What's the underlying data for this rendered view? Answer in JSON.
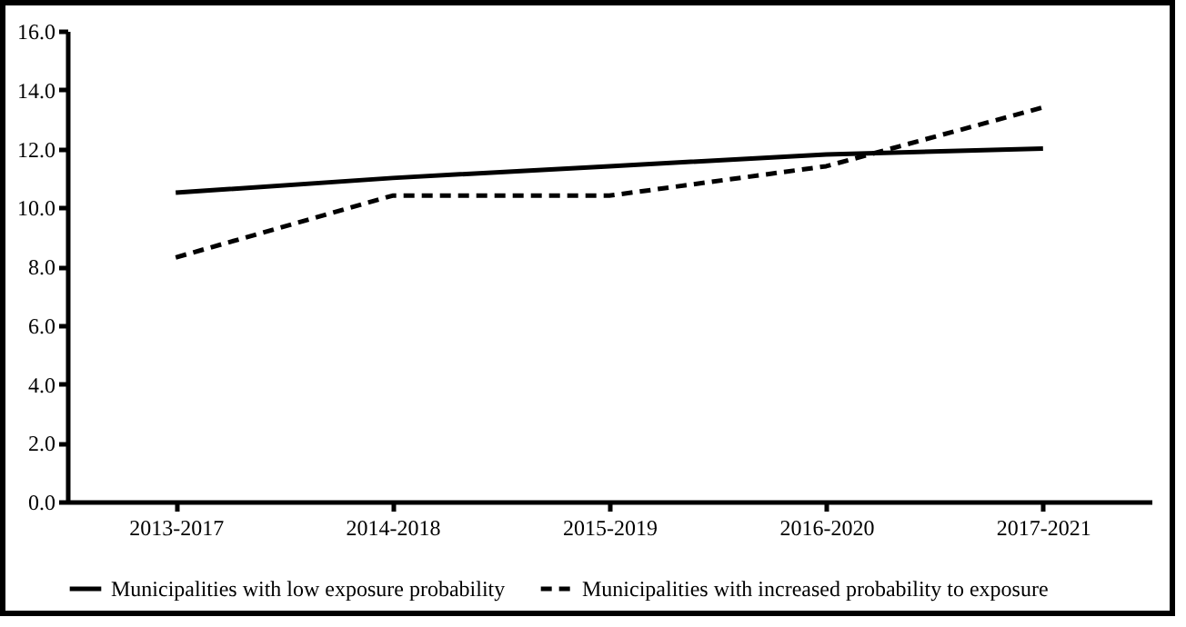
{
  "chart_data": {
    "type": "line",
    "categories": [
      "2013-2017",
      "2014-2018",
      "2015-2019",
      "2016-2020",
      "2017-2021"
    ],
    "series": [
      {
        "name": "Municipalities with low exposure probability",
        "color": "#000000",
        "line_style": "solid",
        "values": [
          10.5,
          11.0,
          11.4,
          11.8,
          12.0
        ]
      },
      {
        "name": "Municipalities with increased probability to exposure",
        "color": "#000000",
        "line_style": "dashed",
        "values": [
          8.3,
          10.4,
          10.4,
          11.4,
          13.4
        ]
      }
    ],
    "ylim": [
      0,
      16
    ],
    "yticks": [
      {
        "value": 0,
        "label": "0.0"
      },
      {
        "value": 2,
        "label": "2.0"
      },
      {
        "value": 4,
        "label": "4.0"
      },
      {
        "value": 6,
        "label": "6.0"
      },
      {
        "value": 8,
        "label": "8.0"
      },
      {
        "value": 10,
        "label": "10.0"
      },
      {
        "value": 12,
        "label": "12.0"
      },
      {
        "value": 14,
        "label": "14.0"
      },
      {
        "value": 16,
        "label": "16.0"
      }
    ],
    "grid": false,
    "legend": "bottom",
    "marker": "none"
  }
}
